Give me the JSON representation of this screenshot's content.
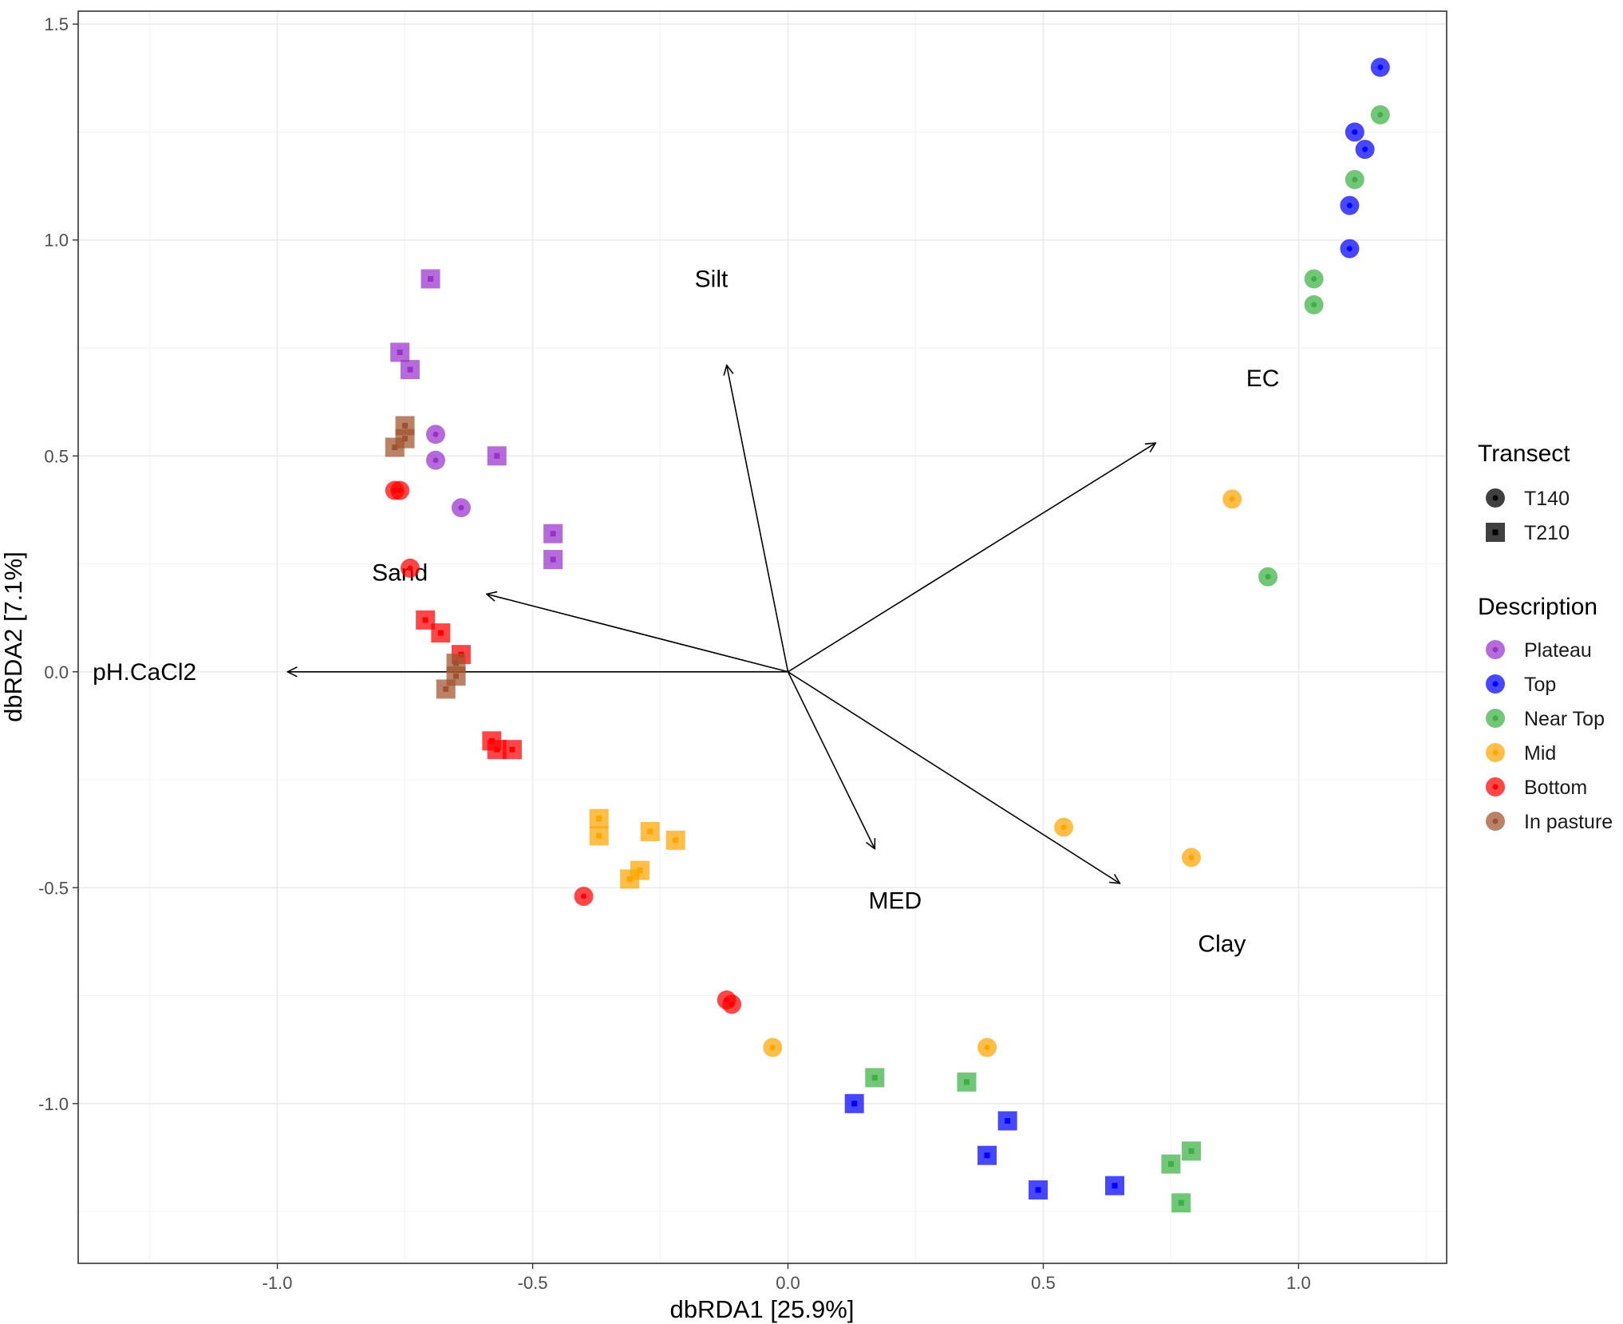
{
  "colors": {
    "Plateau": "#9932CC",
    "Top": "#0000FF",
    "Near Top": "#3CB043",
    "Mid": "#FFA500",
    "Bottom": "#FF0000",
    "In pasture": "#A0522D",
    "grid_major": "#EBEBEB",
    "grid_minor": "#F4F4F4"
  },
  "chart_data": {
    "type": "scatter",
    "xlabel": "dbRDA1   [25.9%]",
    "ylabel": "dbRDA2   [7.1%]",
    "xlim": [
      -1.39,
      1.29
    ],
    "ylim": [
      -1.37,
      1.53
    ],
    "x_ticks": [
      -1.0,
      -0.5,
      0.0,
      0.5,
      1.0
    ],
    "x_tick_labels": [
      "-1.0",
      "-0.5",
      "0.0",
      "0.5",
      "1.0"
    ],
    "y_ticks": [
      -1.0,
      -0.5,
      0.0,
      0.5,
      1.0,
      1.5
    ],
    "y_tick_labels": [
      "-1.0",
      "-0.5",
      "0.0",
      "0.5",
      "1.0",
      "1.5"
    ],
    "grid": true,
    "legend_position": "right",
    "legend": {
      "transect_title": "Transect",
      "transect": [
        {
          "label": "T140",
          "shape": "circle"
        },
        {
          "label": "T210",
          "shape": "square"
        }
      ],
      "description_title": "Description",
      "description": [
        "Plateau",
        "Top",
        "Near Top",
        "Mid",
        "Bottom",
        "In pasture"
      ]
    },
    "vectors": [
      {
        "name": "Silt",
        "x": -0.12,
        "y": 0.71,
        "label_x": -0.15,
        "label_y": 0.91
      },
      {
        "name": "EC",
        "x": 0.72,
        "y": 0.53,
        "label_x": 0.93,
        "label_y": 0.68
      },
      {
        "name": "Sand",
        "x": -0.59,
        "y": 0.18,
        "label_x": -0.76,
        "label_y": 0.23
      },
      {
        "name": "pH.CaCl2",
        "x": -0.98,
        "y": 0.0,
        "label_x": -1.26,
        "label_y": 0.0
      },
      {
        "name": "MED",
        "x": 0.17,
        "y": -0.41,
        "label_x": 0.21,
        "label_y": -0.53
      },
      {
        "name": "Clay",
        "x": 0.65,
        "y": -0.49,
        "label_x": 0.85,
        "label_y": -0.63
      }
    ],
    "series": [
      {
        "name": "Plateau",
        "transect": "T140",
        "points": [
          [
            -0.69,
            0.55
          ],
          [
            -0.69,
            0.49
          ],
          [
            -0.64,
            0.38
          ]
        ]
      },
      {
        "name": "Plateau",
        "transect": "T210",
        "points": [
          [
            -0.7,
            0.91
          ],
          [
            -0.76,
            0.74
          ],
          [
            -0.74,
            0.7
          ],
          [
            -0.57,
            0.5
          ],
          [
            -0.46,
            0.32
          ],
          [
            -0.46,
            0.26
          ]
        ]
      },
      {
        "name": "Top",
        "transect": "T140",
        "points": [
          [
            1.16,
            1.4
          ],
          [
            1.11,
            1.25
          ],
          [
            1.13,
            1.21
          ],
          [
            1.1,
            1.08
          ],
          [
            1.1,
            0.98
          ]
        ]
      },
      {
        "name": "Top",
        "transect": "T210",
        "points": [
          [
            0.13,
            -1.0
          ],
          [
            0.43,
            -1.04
          ],
          [
            0.39,
            -1.12
          ],
          [
            0.49,
            -1.2
          ],
          [
            0.64,
            -1.19
          ]
        ]
      },
      {
        "name": "Near Top",
        "transect": "T140",
        "points": [
          [
            1.16,
            1.29
          ],
          [
            1.11,
            1.14
          ],
          [
            1.03,
            0.91
          ],
          [
            1.03,
            0.85
          ],
          [
            0.94,
            0.22
          ]
        ]
      },
      {
        "name": "Near Top",
        "transect": "T210",
        "points": [
          [
            0.17,
            -0.94
          ],
          [
            0.35,
            -0.95
          ],
          [
            0.79,
            -1.11
          ],
          [
            0.75,
            -1.14
          ],
          [
            0.77,
            -1.23
          ]
        ]
      },
      {
        "name": "Mid",
        "transect": "T140",
        "points": [
          [
            0.87,
            0.4
          ],
          [
            0.54,
            -0.36
          ],
          [
            0.79,
            -0.43
          ],
          [
            -0.03,
            -0.87
          ],
          [
            0.39,
            -0.87
          ]
        ]
      },
      {
        "name": "Mid",
        "transect": "T210",
        "points": [
          [
            -0.37,
            -0.34
          ],
          [
            -0.37,
            -0.38
          ],
          [
            -0.27,
            -0.37
          ],
          [
            -0.22,
            -0.39
          ],
          [
            -0.29,
            -0.46
          ],
          [
            -0.31,
            -0.48
          ]
        ]
      },
      {
        "name": "Bottom",
        "transect": "T140",
        "points": [
          [
            -0.77,
            0.42
          ],
          [
            -0.76,
            0.42
          ],
          [
            -0.74,
            0.24
          ],
          [
            -0.4,
            -0.52
          ],
          [
            -0.12,
            -0.76
          ],
          [
            -0.11,
            -0.77
          ]
        ]
      },
      {
        "name": "Bottom",
        "transect": "T210",
        "points": [
          [
            -0.71,
            0.12
          ],
          [
            -0.68,
            0.09
          ],
          [
            -0.64,
            0.04
          ],
          [
            -0.58,
            -0.16
          ],
          [
            -0.57,
            -0.18
          ],
          [
            -0.54,
            -0.18
          ]
        ]
      },
      {
        "name": "In pasture",
        "transect": "T210",
        "points": [
          [
            -0.75,
            0.57
          ],
          [
            -0.75,
            0.54
          ],
          [
            -0.77,
            0.52
          ],
          [
            -0.65,
            0.02
          ],
          [
            -0.65,
            -0.01
          ],
          [
            -0.67,
            -0.04
          ]
        ]
      }
    ]
  }
}
